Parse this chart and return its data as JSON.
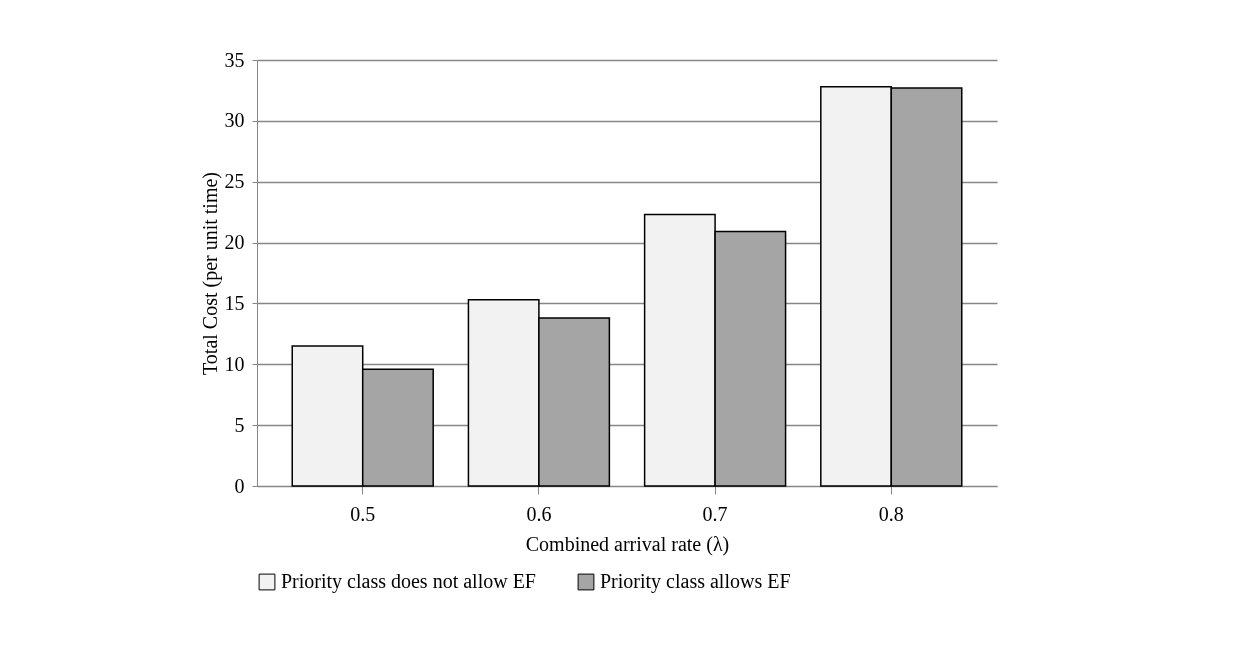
{
  "chart_data": {
    "type": "bar",
    "xlabel": "Combined arrival rate (λ)",
    "ylabel": "Total Cost (per unit time)",
    "categories": [
      "0.5",
      "0.6",
      "0.7",
      "0.8"
    ],
    "series": [
      {
        "name": "Priority class does not allow EF",
        "color": "#f2f2f2",
        "values": [
          11.5,
          15.3,
          22.3,
          32.8
        ]
      },
      {
        "name": "Priority class allows EF",
        "color": "#a5a5a5",
        "values": [
          9.6,
          13.8,
          20.9,
          32.7
        ]
      }
    ],
    "ylim": [
      0,
      35
    ],
    "yticks": [
      0,
      5,
      10,
      15,
      20,
      25,
      30,
      35
    ],
    "grid": "y",
    "legend": "bottom"
  }
}
